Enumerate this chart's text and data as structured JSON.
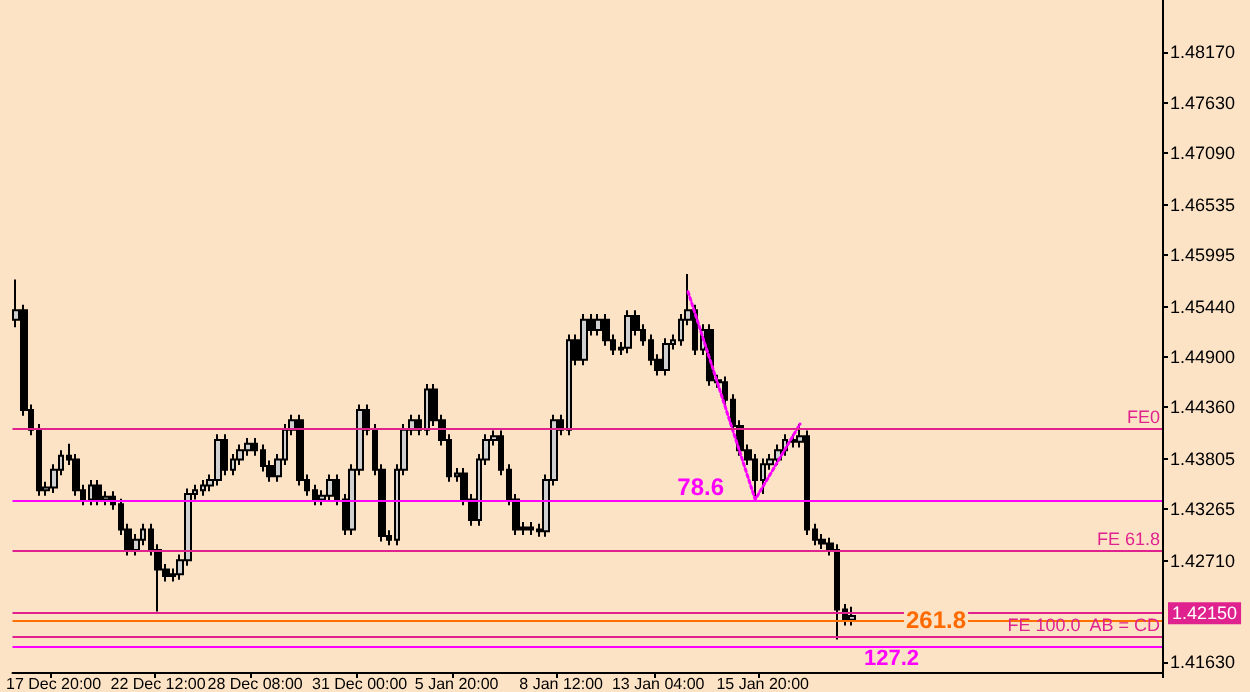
{
  "chart_data": {
    "type": "candlestick",
    "color": "#000000",
    "grid": false,
    "categories": [
      null,
      null,
      null,
      null,
      null,
      "17 Dec 20:00",
      null,
      null,
      null,
      null,
      null,
      null,
      null,
      null,
      null,
      null,
      null,
      null,
      null,
      "22 Dec 12:00",
      null,
      null,
      null,
      null,
      null,
      null,
      null,
      null,
      null,
      null,
      null,
      null,
      "28 Dec 08:00",
      null,
      null,
      null,
      null,
      null,
      null,
      null,
      null,
      null,
      null,
      null,
      null,
      null,
      "31 Dec 00:00",
      null,
      null,
      null,
      null,
      null,
      null,
      null,
      null,
      null,
      null,
      null,
      null,
      "5 Jan 20:00",
      null,
      null,
      null,
      null,
      null,
      null,
      null,
      null,
      null,
      null,
      null,
      null,
      null,
      "8 Jan 12:00",
      null,
      null,
      null,
      null,
      null,
      null,
      null,
      null,
      null,
      null,
      null,
      null,
      "13 Jan 04:00",
      null,
      null,
      null,
      null,
      null,
      null,
      null,
      null,
      null,
      null,
      null,
      null,
      null,
      "15 Jan 20:00",
      null,
      null,
      null,
      null,
      null,
      null,
      null,
      null,
      null,
      null,
      null,
      null,
      null,
      null,
      null,
      null,
      null,
      null,
      null,
      null,
      null,
      null,
      null,
      null,
      null,
      null,
      null,
      null,
      null,
      null,
      null,
      null,
      null,
      null,
      null,
      null,
      null,
      null,
      null,
      null,
      null,
      null,
      null,
      null,
      null,
      null,
      null,
      null,
      null,
      null,
      null,
      null,
      null
    ],
    "ohlc": [
      [
        1.453,
        1.4573,
        1.4522,
        1.454
      ],
      [
        1.454,
        1.4546,
        1.4427,
        1.4433
      ],
      [
        1.4433,
        1.4439,
        1.4406,
        1.4412
      ],
      [
        1.4412,
        1.4418,
        1.4341,
        1.4347
      ],
      [
        1.4347,
        1.4356,
        1.4341,
        1.435
      ],
      [
        1.435,
        1.4375,
        1.4344,
        1.4369
      ],
      [
        1.4369,
        1.439,
        1.4363,
        1.4384
      ],
      [
        1.4384,
        1.4397,
        1.4374,
        1.438
      ],
      [
        1.438,
        1.4386,
        1.4341,
        1.4347
      ],
      [
        1.4347,
        1.4353,
        1.4331,
        1.4337
      ],
      [
        1.4337,
        1.4358,
        1.4331,
        1.4352
      ],
      [
        1.4352,
        1.4358,
        1.4331,
        1.4337
      ],
      [
        1.4337,
        1.4346,
        1.4331,
        1.434
      ],
      [
        1.434,
        1.4346,
        1.4326,
        1.4332
      ],
      [
        1.4332,
        1.4338,
        1.4299,
        1.4305
      ],
      [
        1.4305,
        1.4311,
        1.4277,
        1.4283
      ],
      [
        1.4283,
        1.43,
        1.4277,
        1.4294
      ],
      [
        1.4294,
        1.4311,
        1.4288,
        1.4305
      ],
      [
        1.4305,
        1.4311,
        1.4277,
        1.4283
      ],
      [
        1.4283,
        1.4289,
        1.4217,
        1.4262
      ],
      [
        1.4262,
        1.4268,
        1.4249,
        1.4255
      ],
      [
        1.4255,
        1.4263,
        1.4249,
        1.4257
      ],
      [
        1.4257,
        1.4278,
        1.4251,
        1.4272
      ],
      [
        1.4272,
        1.4349,
        1.4266,
        1.4343
      ],
      [
        1.4343,
        1.4353,
        1.4337,
        1.4347
      ],
      [
        1.4347,
        1.4358,
        1.4341,
        1.4352
      ],
      [
        1.4352,
        1.4364,
        1.4346,
        1.4358
      ],
      [
        1.4358,
        1.4407,
        1.4352,
        1.4401
      ],
      [
        1.4401,
        1.4407,
        1.4363,
        1.4369
      ],
      [
        1.4369,
        1.4386,
        1.4363,
        1.438
      ],
      [
        1.438,
        1.4396,
        1.4374,
        1.439
      ],
      [
        1.439,
        1.4403,
        1.4384,
        1.4397
      ],
      [
        1.4397,
        1.4403,
        1.4384,
        1.439
      ],
      [
        1.439,
        1.4396,
        1.4367,
        1.4373
      ],
      [
        1.4373,
        1.4379,
        1.4356,
        1.4362
      ],
      [
        1.4362,
        1.4386,
        1.4356,
        1.438
      ],
      [
        1.438,
        1.4418,
        1.4374,
        1.4412
      ],
      [
        1.4412,
        1.4428,
        1.4406,
        1.4422
      ],
      [
        1.4422,
        1.4428,
        1.4352,
        1.4358
      ],
      [
        1.4358,
        1.4364,
        1.4341,
        1.4347
      ],
      [
        1.4347,
        1.4353,
        1.4331,
        1.4337
      ],
      [
        1.4337,
        1.4347,
        1.4331,
        1.4341
      ],
      [
        1.4341,
        1.4364,
        1.4335,
        1.4358
      ],
      [
        1.4358,
        1.4364,
        1.4331,
        1.4337
      ],
      [
        1.4337,
        1.4343,
        1.4299,
        1.4305
      ],
      [
        1.4305,
        1.4375,
        1.4299,
        1.4369
      ],
      [
        1.4369,
        1.4439,
        1.4363,
        1.4433
      ],
      [
        1.4433,
        1.4439,
        1.4406,
        1.4412
      ],
      [
        1.4412,
        1.4418,
        1.4363,
        1.4369
      ],
      [
        1.4369,
        1.4375,
        1.4292,
        1.4298
      ],
      [
        1.4298,
        1.4304,
        1.4288,
        1.4294
      ],
      [
        1.4294,
        1.4375,
        1.4288,
        1.4369
      ],
      [
        1.4369,
        1.4418,
        1.4363,
        1.4412
      ],
      [
        1.4412,
        1.4428,
        1.4406,
        1.4422
      ],
      [
        1.4422,
        1.4428,
        1.4406,
        1.4412
      ],
      [
        1.4412,
        1.4461,
        1.4406,
        1.4455
      ],
      [
        1.4455,
        1.4461,
        1.4416,
        1.4422
      ],
      [
        1.4422,
        1.4428,
        1.4395,
        1.4401
      ],
      [
        1.4401,
        1.4407,
        1.4356,
        1.4362
      ],
      [
        1.4362,
        1.4371,
        1.4356,
        1.4365
      ],
      [
        1.4365,
        1.4371,
        1.4331,
        1.4337
      ],
      [
        1.4337,
        1.4343,
        1.4309,
        1.4315
      ],
      [
        1.4315,
        1.4386,
        1.4309,
        1.438
      ],
      [
        1.438,
        1.4407,
        1.4374,
        1.4401
      ],
      [
        1.4401,
        1.4411,
        1.4395,
        1.4405
      ],
      [
        1.4405,
        1.4411,
        1.4363,
        1.4369
      ],
      [
        1.4369,
        1.4375,
        1.4331,
        1.4337
      ],
      [
        1.4337,
        1.4343,
        1.4299,
        1.4305
      ],
      [
        1.4305,
        1.4313,
        1.4299,
        1.4307
      ],
      [
        1.4307,
        1.4313,
        1.4299,
        1.4305
      ],
      [
        1.4305,
        1.4311,
        1.4297,
        1.4303
      ],
      [
        1.4303,
        1.4364,
        1.4297,
        1.4358
      ],
      [
        1.4358,
        1.4428,
        1.4352,
        1.4422
      ],
      [
        1.4422,
        1.4428,
        1.4406,
        1.4412
      ],
      [
        1.4412,
        1.4514,
        1.4406,
        1.4508
      ],
      [
        1.4508,
        1.4514,
        1.4481,
        1.4487
      ],
      [
        1.4487,
        1.4536,
        1.4481,
        1.453
      ],
      [
        1.453,
        1.4536,
        1.4513,
        1.4519
      ],
      [
        1.4519,
        1.4536,
        1.4513,
        1.453
      ],
      [
        1.453,
        1.4536,
        1.4502,
        1.4508
      ],
      [
        1.4508,
        1.4514,
        1.4492,
        1.4498
      ],
      [
        1.4498,
        1.4506,
        1.4492,
        1.45
      ],
      [
        1.45,
        1.454,
        1.4494,
        1.4534
      ],
      [
        1.4534,
        1.454,
        1.4513,
        1.4519
      ],
      [
        1.4519,
        1.4525,
        1.4502,
        1.4508
      ],
      [
        1.4508,
        1.4514,
        1.4481,
        1.4487
      ],
      [
        1.4487,
        1.4493,
        1.447,
        1.4476
      ],
      [
        1.4476,
        1.451,
        1.447,
        1.4504
      ],
      [
        1.4504,
        1.4514,
        1.4498,
        1.4508
      ],
      [
        1.4508,
        1.4536,
        1.4502,
        1.453
      ],
      [
        1.453,
        1.4579,
        1.4524,
        1.454
      ],
      [
        1.454,
        1.4546,
        1.4492,
        1.4498
      ],
      [
        1.4498,
        1.4525,
        1.4492,
        1.4519
      ],
      [
        1.4519,
        1.4525,
        1.4459,
        1.4465
      ],
      [
        1.4465,
        1.4471,
        1.4457,
        1.4463
      ],
      [
        1.4463,
        1.4469,
        1.4438,
        1.4444
      ],
      [
        1.4444,
        1.445,
        1.441,
        1.4416
      ],
      [
        1.4416,
        1.4422,
        1.4384,
        1.439
      ],
      [
        1.439,
        1.4396,
        1.4374,
        1.438
      ],
      [
        1.438,
        1.4386,
        1.4337,
        1.4358
      ],
      [
        1.4358,
        1.4381,
        1.4343,
        1.4375
      ],
      [
        1.4375,
        1.4386,
        1.4369,
        1.438
      ],
      [
        1.438,
        1.4396,
        1.4374,
        1.439
      ],
      [
        1.439,
        1.4407,
        1.4384,
        1.4401
      ],
      [
        1.4401,
        1.4407,
        1.4393,
        1.4399
      ],
      [
        1.4399,
        1.4418,
        1.4393,
        1.4405
      ],
      [
        1.4405,
        1.4411,
        1.4299,
        1.4305
      ],
      [
        1.4305,
        1.4311,
        1.4288,
        1.4294
      ],
      [
        1.4294,
        1.43,
        1.4284,
        1.429
      ],
      [
        1.429,
        1.4296,
        1.4277,
        1.4283
      ],
      [
        1.4283,
        1.4289,
        1.4187,
        1.4219
      ],
      [
        1.4219,
        1.4225,
        1.4202,
        1.4208
      ],
      [
        1.4208,
        1.4222,
        1.4202,
        1.4212
      ],
      null,
      null,
      null,
      null,
      null,
      null,
      null,
      null,
      null,
      null,
      null,
      null,
      null,
      null,
      null,
      null,
      null,
      null,
      null,
      null,
      null,
      null,
      null,
      null,
      null,
      null,
      null,
      null,
      null,
      null,
      null,
      null,
      null,
      null,
      null,
      null,
      null,
      null,
      null,
      null,
      null
    ],
    "series": [
      {
        "type": "line",
        "color": "#ff00ff",
        "line_style": "dotted",
        "values": [
          null,
          null,
          null,
          null,
          null,
          null,
          null,
          null,
          null,
          null,
          null,
          null,
          null,
          null,
          null,
          null,
          null,
          null,
          null,
          null,
          null,
          null,
          null,
          null,
          null,
          null,
          null,
          null,
          null,
          null,
          null,
          null,
          null,
          null,
          null,
          null,
          null,
          null,
          null,
          null,
          null,
          null,
          null,
          null,
          null,
          null,
          null,
          null,
          null,
          null,
          null,
          null,
          null,
          null,
          null,
          null,
          null,
          null,
          null,
          null,
          null,
          null,
          null,
          null,
          null,
          null,
          null,
          null,
          null,
          null,
          null,
          null,
          null,
          null,
          null,
          null,
          null,
          null,
          null,
          null,
          null,
          null,
          null,
          null,
          null,
          null,
          null,
          null,
          null,
          null,
          1.456,
          null,
          null,
          null,
          null,
          null,
          null,
          null,
          null,
          1.4337,
          null,
          null,
          null,
          null,
          null,
          1.4418,
          null,
          null,
          null,
          null,
          null,
          null,
          null,
          null,
          null,
          null,
          null,
          null,
          null,
          null,
          null,
          null,
          null,
          null,
          null,
          null,
          null,
          null,
          null,
          null,
          null,
          null,
          null,
          null,
          null,
          null,
          null,
          null,
          null,
          null,
          null,
          null,
          null,
          null,
          null,
          null,
          null,
          null,
          null,
          null,
          null,
          null,
          null,
          null
        ]
      }
    ],
    "ylim": [
      1.4152,
      1.4873
    ],
    "yticks": [
      {
        "value": 1.4163,
        "label": "1.41630"
      },
      {
        "value": 1.4271,
        "label": "1.42710"
      },
      {
        "value": 1.43265,
        "label": "1.43265"
      },
      {
        "value": 1.43805,
        "label": "1.43805"
      },
      {
        "value": 1.4436,
        "label": "1.44360"
      },
      {
        "value": 1.449,
        "label": "1.44900"
      },
      {
        "value": 1.4544,
        "label": "1.45440"
      },
      {
        "value": 1.45995,
        "label": "1.45995"
      },
      {
        "value": 1.46535,
        "label": "1.46535"
      },
      {
        "value": 1.4709,
        "label": "1.47090"
      },
      {
        "value": 1.4763,
        "label": "1.47630"
      },
      {
        "value": 1.4817,
        "label": "1.48170"
      }
    ],
    "ref_lines": [
      {
        "axis": "y",
        "value": 1.4414,
        "label": "FE0",
        "color": "#e0228f"
      },
      {
        "axis": "y",
        "value": 1.4335,
        "label": null,
        "color": "#ff00ff"
      },
      {
        "axis": "y",
        "value": 1.4283,
        "label": "FE 61.8",
        "color": "#e0228f"
      },
      {
        "axis": "y",
        "value": 1.4215,
        "label": "1.42150",
        "color": "#e0228f"
      },
      {
        "axis": "y",
        "value": 1.4208,
        "label": null,
        "color": "#ff7000"
      },
      {
        "axis": "y",
        "value": 1.4191,
        "label": "FE 100.0  AB = CD",
        "color": "#e0228f"
      },
      {
        "axis": "y",
        "value": 1.418,
        "label": null,
        "color": "#ff00ff"
      }
    ],
    "annotations": [
      {
        "text": "78.6",
        "y": 1.4335
      },
      {
        "text": "261.8",
        "y": 1.4208
      },
      {
        "text": "127.2",
        "y": 1.418
      }
    ]
  }
}
